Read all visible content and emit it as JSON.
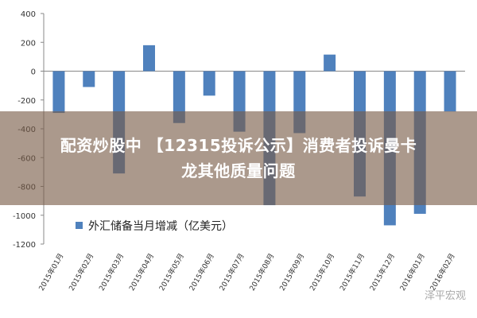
{
  "chart_data": {
    "type": "bar",
    "categories": [
      "2015年01月",
      "2015年02月",
      "2015年03月",
      "2015年04月",
      "2015年05月",
      "2015年06月",
      "2015年07月",
      "2015年08月",
      "2015年09月",
      "2015年10月",
      "2015年11月",
      "2015年12月",
      "2016年01月",
      "2016年02月"
    ],
    "series": [
      {
        "name": "外汇储备当月增减（亿美元）",
        "values": [
          -290,
          -110,
          -710,
          180,
          -360,
          -170,
          -420,
          -930,
          -430,
          115,
          -870,
          -1070,
          -990,
          -280
        ]
      }
    ],
    "ylim": [
      -1200,
      400
    ],
    "yticks": [
      400,
      200,
      0,
      -200,
      -400,
      -600,
      -800,
      -1000,
      -1200
    ],
    "bar_color": "#4f81bd",
    "grid": false,
    "legend_position": "bottom-left"
  },
  "overlay": {
    "lines": [
      "配资炒股中 【12315投诉公示】消费者投诉曼卡",
      "龙其他质量问题"
    ],
    "color": "#785a46"
  },
  "watermark": "泽平宏观"
}
